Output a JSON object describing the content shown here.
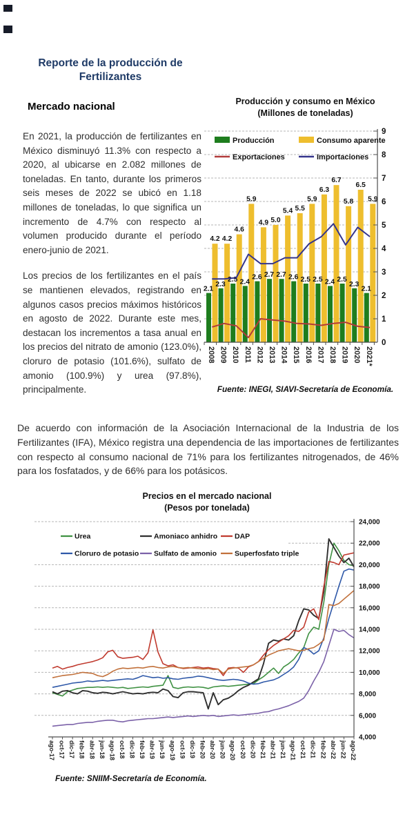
{
  "page": {
    "report_title_line1": "Reporte de la producción de",
    "report_title_line2": "Fertilizantes",
    "section_heading": "Mercado nacional",
    "paragraph1": "En 2021, la producción de fertilizantes en México disminuyó 11.3% con respecto a 2020, al ubicarse en 2.082 millones de toneladas. En tanto, durante los primeros seis meses de 2022 se ubicó en 1.18 millones de toneladas, lo que significa un incremento de 4.7% con respecto al volumen producido durante el período enero-junio de 2021.",
    "paragraph2": "Los precios de los fertilizantes en el país se mantienen elevados, registrando en algunos casos precios máximos históricos en agosto de 2022. Durante este mes, destacan los incrementos a tasa anual en los precios del nitrato de amonio (123.0%), cloruro de potasio (101.6%), sulfato de amonio (100.9%) y urea (97.8%), principalmente.",
    "paragraph3": "De acuerdo con información de la Asociación Internacional de la Industria de los Fertilizantes (IFA), México registra una dependencia de las importaciones de fertilizantes con respecto al consumo nacional de 71% para los fertilizantes nitrogenados, de 46% para los fosfatados, y de 66% para los potásicos."
  },
  "chart_data": [
    {
      "type": "bar+line",
      "title": "Producción y consumo en México",
      "subtitle": "(Millones de toneladas)",
      "categories": [
        "2008",
        "2009",
        "2010",
        "2011",
        "2012",
        "2013",
        "2014",
        "2015",
        "2016",
        "2017",
        "2018",
        "2019",
        "2020",
        "2021*"
      ],
      "series": [
        {
          "name": "Producción",
          "type": "bar",
          "color": "#1e7d1e",
          "values": [
            2.1,
            2.3,
            2.5,
            2.4,
            2.6,
            2.7,
            2.7,
            2.6,
            2.5,
            2.5,
            2.4,
            2.5,
            2.3,
            2.1
          ]
        },
        {
          "name": "Consumo aparente",
          "type": "bar",
          "color": "#eebe2e",
          "values": [
            4.2,
            4.2,
            4.6,
            5.9,
            4.9,
            5.0,
            5.4,
            5.5,
            5.9,
            6.3,
            6.7,
            5.8,
            6.5,
            5.9
          ]
        },
        {
          "name": "Exportaciones",
          "type": "line",
          "color": "#b23b3b",
          "values": [
            0.65,
            0.8,
            0.7,
            0.2,
            1.0,
            0.95,
            0.9,
            0.8,
            0.78,
            0.72,
            0.8,
            0.85,
            0.68,
            0.63
          ]
        },
        {
          "name": "Importaciones",
          "type": "line",
          "color": "#34348c",
          "values": [
            2.7,
            2.7,
            2.75,
            3.75,
            3.35,
            3.35,
            3.6,
            3.6,
            4.2,
            4.5,
            5.05,
            4.15,
            4.9,
            4.5
          ]
        }
      ],
      "ylim": [
        0,
        9
      ],
      "yticks": [
        0,
        1,
        2,
        3,
        4,
        5,
        6,
        7,
        8,
        9
      ],
      "grid": "dashed-horizontal",
      "y_axis_side": "right",
      "bar_value_labels": true,
      "legend_position": "top-inside",
      "source": "Fuente: INEGI, SIAVI-Secretaría de Economía."
    },
    {
      "type": "line",
      "title": "Precios en el mercado nacional",
      "subtitle": "(Pesos por tonelada)",
      "x_tick_labels": [
        "ago-17",
        "oct-17",
        "dic-17",
        "feb-18",
        "abr-18",
        "jun-18",
        "ago-18",
        "oct-18",
        "dic-18",
        "feb-19",
        "abr-19",
        "jun-19",
        "ago-19",
        "oct-19",
        "dic-19",
        "feb-20",
        "abr-20",
        "jun-20",
        "ago-20",
        "oct-20",
        "dic-20",
        "feb-21",
        "abr-21",
        "jun-21",
        "ago-21",
        "oct-21",
        "dic-21",
        "feb-22",
        "abr-22",
        "jun-22",
        "ago-22"
      ],
      "points_per_tick": 2,
      "series": [
        {
          "name": "Urea",
          "color": "#3f9142",
          "values": [
            8100,
            7950,
            7800,
            8200,
            8350,
            8500,
            8550,
            8600,
            8600,
            8650,
            8600,
            8650,
            8600,
            8550,
            8600,
            8500,
            8550,
            8600,
            8650,
            8600,
            8700,
            8750,
            8800,
            9700,
            8600,
            8500,
            8600,
            8650,
            8600,
            8650,
            8600,
            8500,
            8650,
            8700,
            8750,
            8700,
            8750,
            8800,
            8850,
            8900,
            8950,
            9300,
            9600,
            10000,
            10400,
            9900,
            10500,
            10800,
            11200,
            11800,
            12300,
            13600,
            14200,
            14000,
            16500,
            20000,
            22000,
            21300,
            20400,
            20000,
            19900
          ]
        },
        {
          "name": "Amoniaco anhidro",
          "color": "#2f2f2f",
          "values": [
            8200,
            8000,
            8250,
            8300,
            8100,
            8000,
            8300,
            8250,
            8100,
            8050,
            8150,
            8100,
            8000,
            8100,
            8200,
            8100,
            8000,
            8050,
            8000,
            8100,
            8150,
            8100,
            8450,
            8300,
            7750,
            7650,
            8100,
            8200,
            8200,
            8150,
            8100,
            6600,
            8100,
            7000,
            7450,
            7600,
            7900,
            8300,
            8600,
            8800,
            9100,
            9400,
            10800,
            12700,
            13000,
            12900,
            13100,
            13000,
            13400,
            14800,
            15900,
            15800,
            15300,
            15000,
            17500,
            22400,
            21600,
            20800,
            20200,
            20600,
            19800
          ]
        },
        {
          "name": "DAP",
          "color": "#c03a2e",
          "values": [
            10400,
            10550,
            10300,
            10450,
            10550,
            10700,
            10800,
            10900,
            11000,
            11150,
            11350,
            11900,
            12050,
            11450,
            11300,
            11350,
            11400,
            11500,
            11200,
            11800,
            13950,
            11900,
            10800,
            10600,
            10700,
            10450,
            10350,
            10400,
            10450,
            10500,
            10400,
            10450,
            10350,
            10300,
            9700,
            10400,
            10450,
            10400,
            10000,
            10500,
            10700,
            11000,
            11600,
            12100,
            12500,
            12800,
            13100,
            13400,
            13900,
            13800,
            14200,
            15600,
            15900,
            14900,
            18000,
            20300,
            20200,
            20000,
            20900,
            21000,
            21100
          ]
        },
        {
          "name": "Cloruro de potasio",
          "color": "#2e58a8",
          "values": [
            8600,
            8700,
            8800,
            8900,
            9000,
            9050,
            9100,
            9200,
            9150,
            9200,
            9250,
            9200,
            9250,
            9300,
            9350,
            9400,
            9350,
            9500,
            9700,
            9600,
            9500,
            9550,
            9450,
            9500,
            9400,
            9350,
            9450,
            9500,
            9550,
            9650,
            9600,
            9500,
            9400,
            9300,
            9250,
            9300,
            9350,
            9300,
            9200,
            9000,
            8900,
            8950,
            9100,
            9200,
            9300,
            9500,
            9800,
            10100,
            10500,
            11200,
            12300,
            12100,
            11700,
            12000,
            13200,
            15000,
            16500,
            18000,
            19400,
            19600,
            19500
          ]
        },
        {
          "name": "Sulfato de amonio",
          "color": "#7b61a8",
          "values": [
            5000,
            5050,
            5100,
            5150,
            5150,
            5250,
            5300,
            5350,
            5350,
            5450,
            5500,
            5550,
            5550,
            5450,
            5400,
            5500,
            5550,
            5600,
            5650,
            5700,
            5700,
            5750,
            5800,
            5850,
            5800,
            5850,
            5900,
            5950,
            5900,
            5950,
            6000,
            5950,
            6000,
            5900,
            5950,
            6000,
            6050,
            6000,
            6050,
            6100,
            6150,
            6200,
            6300,
            6350,
            6500,
            6600,
            6750,
            6900,
            7100,
            7300,
            7600,
            8300,
            9200,
            10000,
            11000,
            12500,
            14000,
            13800,
            13900,
            13500,
            13200
          ]
        },
        {
          "name": "Superfosfato triple",
          "color": "#c1703a",
          "values": [
            9500,
            9600,
            9700,
            9750,
            9800,
            9900,
            10000,
            9950,
            9900,
            9700,
            9600,
            9800,
            10100,
            10300,
            10400,
            10350,
            10400,
            10450,
            10400,
            10500,
            10550,
            10450,
            10400,
            10500,
            10550,
            10450,
            10400,
            10450,
            10400,
            10350,
            10300,
            10350,
            10250,
            10300,
            9900,
            10300,
            10400,
            10450,
            10500,
            10550,
            10700,
            11000,
            11300,
            11600,
            11800,
            12000,
            12100,
            12200,
            12100,
            12000,
            12050,
            12200,
            12300,
            12600,
            13000,
            16300,
            16200,
            16400,
            16800,
            17200,
            17600
          ]
        }
      ],
      "ylim": [
        4000,
        24000
      ],
      "yticks": [
        4000,
        6000,
        8000,
        10000,
        12000,
        14000,
        16000,
        18000,
        20000,
        22000,
        24000
      ],
      "grid": "dashed-horizontal",
      "y_axis_side": "right",
      "legend_position": "top-inside",
      "source": "Fuente: SNIIM-Secretaría de Economía."
    }
  ]
}
